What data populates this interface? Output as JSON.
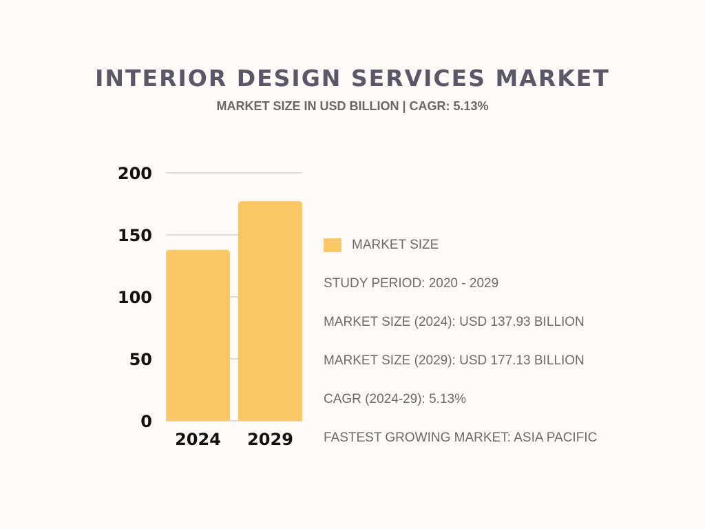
{
  "chart_data": {
    "type": "bar",
    "title": "INTERIOR DESIGN SERVICES MARKET",
    "subtitle": "MARKET SIZE IN USD BILLION | CAGR:  5.13%",
    "categories": [
      "2024",
      "2029"
    ],
    "values": [
      137.93,
      177.13
    ],
    "ylim": [
      0,
      200
    ],
    "yticks": [
      "0",
      "50",
      "100",
      "150",
      "200"
    ],
    "grid": true,
    "legend": {
      "label": "MARKET SIZE",
      "placement": "right"
    },
    "bar_color": "#fdc867"
  },
  "info": [
    "STUDY PERIOD: 2020 - 2029",
    "MARKET SIZE (2024): USD 137.93 BILLION",
    "MARKET SIZE (2029): USD 177.13 BILLION",
    "CAGR (2024-29): 5.13%",
    "FASTEST GROWING MARKET: ASIA PACIFIC"
  ]
}
